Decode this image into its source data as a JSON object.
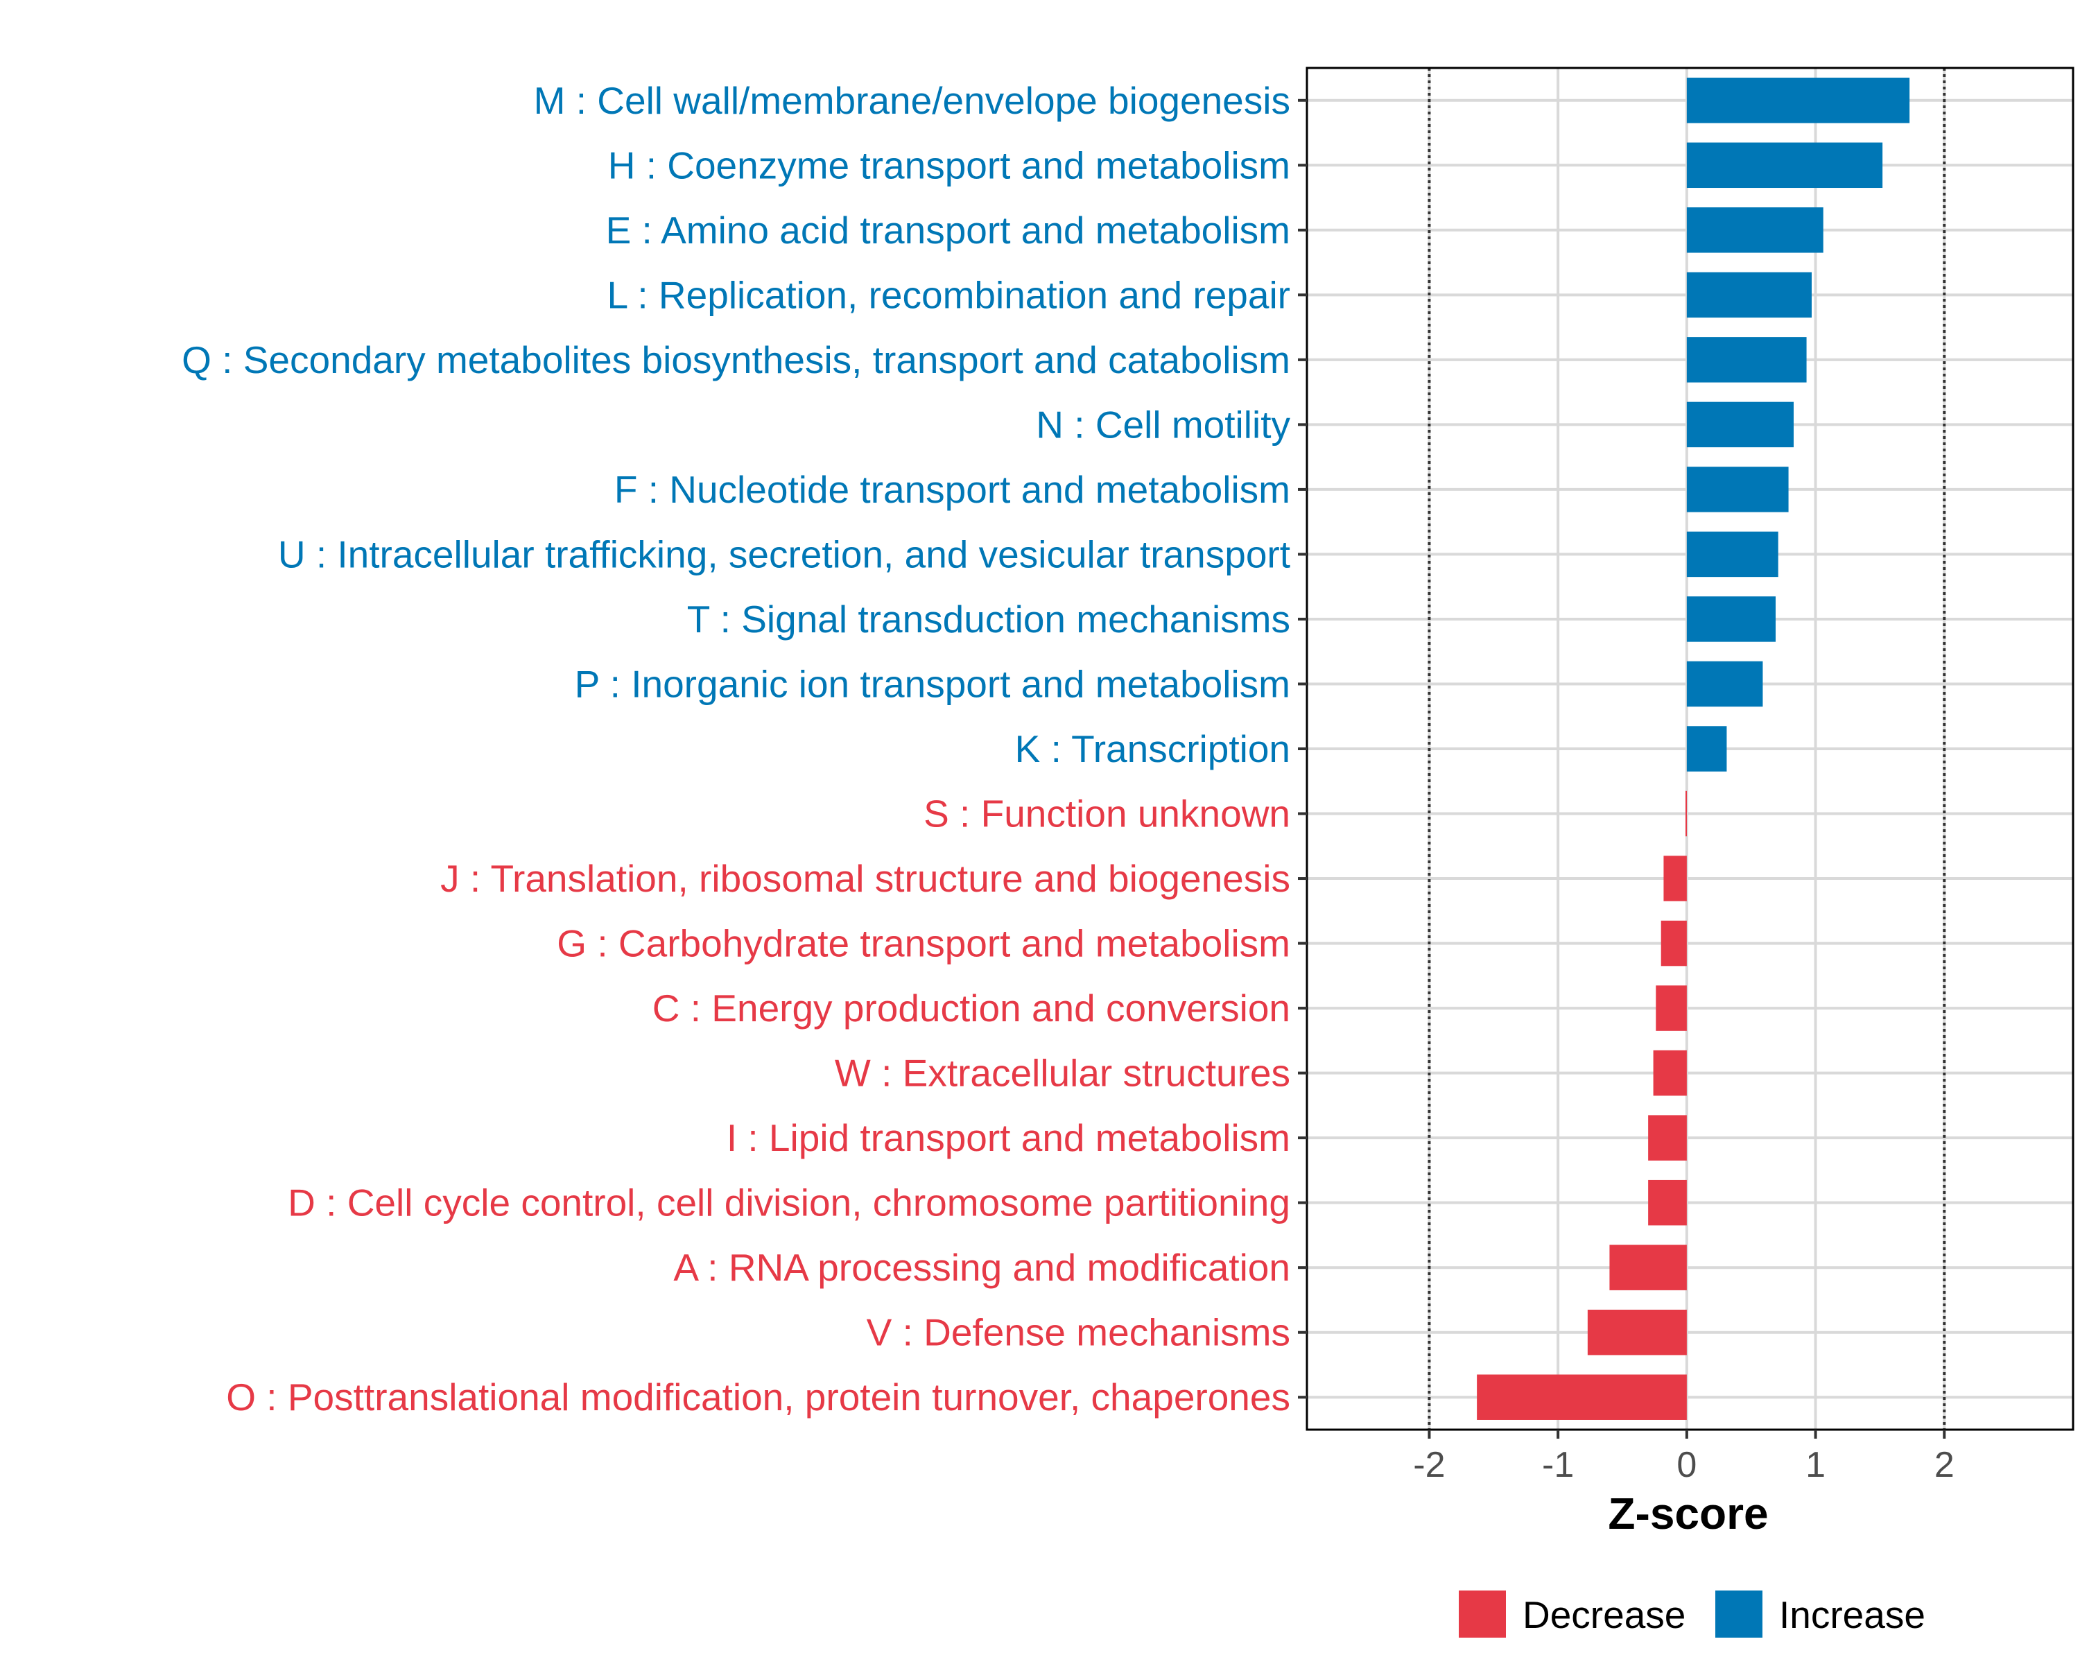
{
  "chart_data": {
    "type": "bar",
    "orientation": "horizontal",
    "xlabel": "Z-score",
    "ylabel": "",
    "xlim": [
      -2.95,
      3.0
    ],
    "xticks": [
      -2,
      -1,
      0,
      1,
      2
    ],
    "xtick_labels": [
      "-2",
      "-1",
      "0",
      "1",
      "2"
    ],
    "reference_lines": [
      -2,
      2
    ],
    "grid": true,
    "colors": {
      "Decrease": "#E63946",
      "Increase": "#0077B6"
    },
    "legend": {
      "position": "bottom",
      "entries": [
        {
          "label": "Decrease",
          "color": "#E63946"
        },
        {
          "label": "Increase",
          "color": "#0077B6"
        }
      ]
    },
    "categories": [
      "M : Cell wall/membrane/envelope biogenesis",
      "H : Coenzyme transport and metabolism",
      "E : Amino acid transport and metabolism",
      "L : Replication, recombination and repair",
      "Q : Secondary metabolites biosynthesis, transport and catabolism",
      "N : Cell motility",
      "F : Nucleotide transport and metabolism",
      "U : Intracellular trafficking, secretion, and vesicular transport",
      "T : Signal transduction mechanisms",
      "P : Inorganic ion transport and metabolism",
      "K : Transcription",
      "S : Function unknown",
      "J : Translation, ribosomal structure and biogenesis",
      "G : Carbohydrate transport and metabolism",
      "C : Energy production and conversion",
      "W : Extracellular structures",
      "I : Lipid transport and metabolism",
      "D : Cell cycle control, cell division, chromosome partitioning",
      "A : RNA processing and modification",
      "V : Defense mechanisms",
      "O : Posttranslational modification, protein turnover, chaperones"
    ],
    "values": [
      1.73,
      1.52,
      1.06,
      0.97,
      0.93,
      0.83,
      0.79,
      0.71,
      0.69,
      0.59,
      0.31,
      -0.01,
      -0.18,
      -0.2,
      -0.24,
      -0.26,
      -0.3,
      -0.3,
      -0.6,
      -0.77,
      -1.63
    ],
    "groups": [
      "Increase",
      "Increase",
      "Increase",
      "Increase",
      "Increase",
      "Increase",
      "Increase",
      "Increase",
      "Increase",
      "Increase",
      "Increase",
      "Decrease",
      "Decrease",
      "Decrease",
      "Decrease",
      "Decrease",
      "Decrease",
      "Decrease",
      "Decrease",
      "Decrease",
      "Decrease"
    ]
  }
}
